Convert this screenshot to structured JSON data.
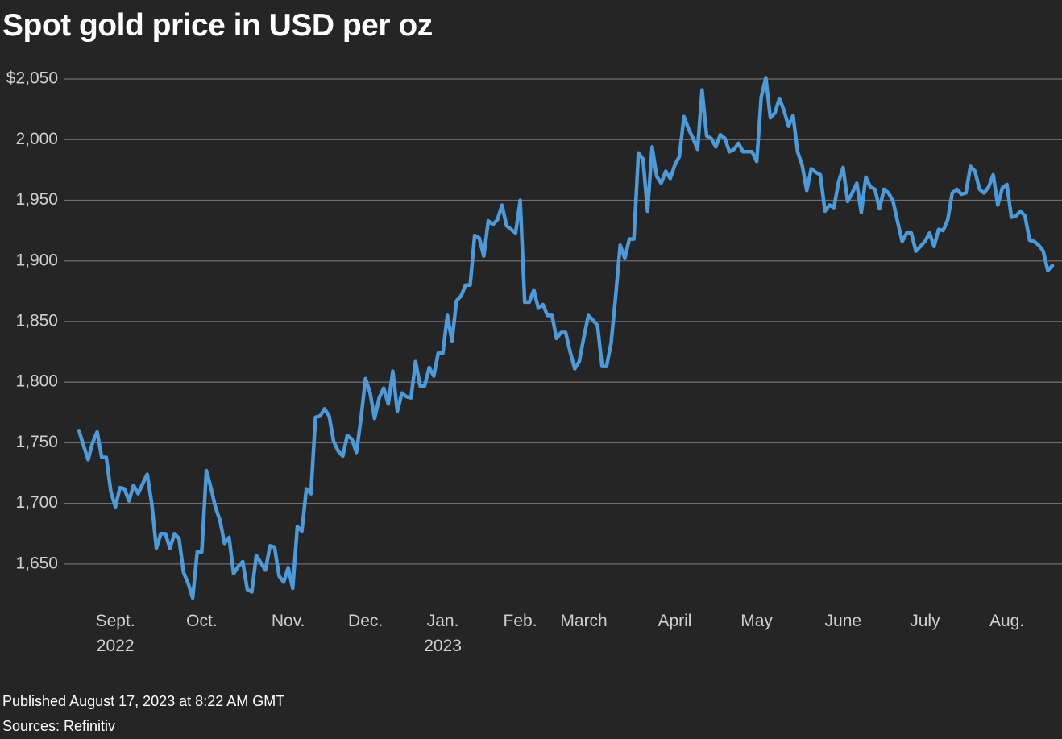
{
  "chart_data": {
    "type": "line",
    "title": "Spot gold price in USD per oz",
    "footer": [
      "Published August 17, 2023 at 8:22 AM GMT",
      "Sources: Refinitiv"
    ],
    "color": "#4c9ad9",
    "grid": true,
    "ylim": [
      1620,
      2055
    ],
    "yticks": [
      {
        "value": 2050,
        "label": "$2,050"
      },
      {
        "value": 2000,
        "label": "2,000"
      },
      {
        "value": 1950,
        "label": "1,950"
      },
      {
        "value": 1900,
        "label": "1,900"
      },
      {
        "value": 1850,
        "label": "1,850"
      },
      {
        "value": 1800,
        "label": "1,800"
      },
      {
        "value": 1750,
        "label": "1,750"
      },
      {
        "value": 1700,
        "label": "1,700"
      },
      {
        "value": 1650,
        "label": "1,650"
      }
    ],
    "categories": [
      null,
      null,
      null,
      null,
      null,
      null,
      null,
      null,
      "Sept. 2022",
      null,
      null,
      null,
      null,
      null,
      null,
      null,
      null,
      null,
      null,
      null,
      null,
      null,
      null,
      null,
      null,
      null,
      null,
      "Oct.",
      null,
      null,
      null,
      null,
      null,
      null,
      null,
      null,
      null,
      null,
      null,
      null,
      null,
      null,
      null,
      null,
      null,
      null,
      "Nov.",
      null,
      null,
      null,
      null,
      null,
      null,
      null,
      null,
      null,
      null,
      null,
      null,
      null,
      null,
      null,
      null,
      "Dec.",
      null,
      null,
      null,
      null,
      null,
      null,
      null,
      null,
      null,
      null,
      null,
      null,
      null,
      null,
      null,
      null,
      "Jan. 2023",
      null,
      null,
      null,
      null,
      null,
      null,
      null,
      null,
      null,
      null,
      null,
      null,
      null,
      null,
      null,
      null,
      "Feb.",
      null,
      null,
      null,
      null,
      null,
      null,
      null,
      null,
      null,
      null,
      null,
      null,
      null,
      "March",
      null,
      null,
      null,
      null,
      null,
      null,
      null,
      null,
      null,
      null,
      null,
      null,
      null,
      null,
      null,
      null,
      null,
      null,
      null,
      "April",
      null,
      null,
      null,
      null,
      null,
      null,
      null,
      null,
      null,
      null,
      null,
      null,
      null,
      null,
      null,
      null,
      null,
      "May",
      null,
      null,
      null,
      null,
      null,
      null,
      null,
      null,
      null,
      null,
      null,
      null,
      null,
      null,
      null,
      null,
      null,
      null,
      "June",
      null,
      null,
      null,
      null,
      null,
      null,
      null,
      null,
      null,
      null,
      null,
      null,
      null,
      null,
      null,
      null,
      null,
      "July",
      null,
      null,
      null,
      null,
      null,
      null,
      null,
      null,
      null,
      null,
      null,
      null,
      null,
      null,
      null,
      null,
      null,
      "Aug.",
      null,
      null,
      null,
      null,
      null,
      null,
      null,
      null,
      null,
      null
    ],
    "values": [
      1760,
      1748,
      1736,
      1750,
      1759,
      1738,
      1738,
      1710,
      1697,
      1713,
      1712,
      1702,
      1715,
      1708,
      1716,
      1724,
      1700,
      1663,
      1675,
      1675,
      1663,
      1675,
      1671,
      1643,
      1634,
      1622,
      1660,
      1660,
      1727,
      1713,
      1697,
      1686,
      1667,
      1672,
      1642,
      1648,
      1652,
      1629,
      1627,
      1657,
      1651,
      1645,
      1665,
      1664,
      1640,
      1635,
      1647,
      1630,
      1681,
      1677,
      1712,
      1708,
      1771,
      1772,
      1778,
      1772,
      1751,
      1743,
      1739,
      1756,
      1753,
      1742,
      1770,
      1803,
      1791,
      1770,
      1787,
      1795,
      1782,
      1809,
      1776,
      1791,
      1788,
      1787,
      1817,
      1797,
      1797,
      1812,
      1805,
      1824,
      1824,
      1855,
      1834,
      1867,
      1871,
      1880,
      1880,
      1921,
      1919,
      1904,
      1933,
      1930,
      1934,
      1946,
      1929,
      1926,
      1923,
      1950,
      1866,
      1866,
      1876,
      1861,
      1864,
      1855,
      1855,
      1836,
      1841,
      1841,
      1825,
      1811,
      1817,
      1837,
      1855,
      1851,
      1847,
      1813,
      1813,
      1832,
      1871,
      1913,
      1902,
      1918,
      1918,
      1989,
      1984,
      1941,
      1994,
      1970,
      1964,
      1974,
      1968,
      1979,
      1986,
      2019,
      2009,
      2001,
      1992,
      2041,
      2003,
      2001,
      1994,
      2004,
      2001,
      1990,
      1992,
      1997,
      1990,
      1990,
      1990,
      1982,
      2035,
      2051,
      2018,
      2022,
      2034,
      2024,
      2011,
      2020,
      1990,
      1979,
      1958,
      1976,
      1973,
      1971,
      1941,
      1946,
      1944,
      1965,
      1977,
      1949,
      1956,
      1964,
      1940,
      1969,
      1961,
      1959,
      1943,
      1959,
      1956,
      1949,
      1932,
      1916,
      1923,
      1923,
      1908,
      1912,
      1916,
      1923,
      1912,
      1926,
      1925,
      1934,
      1956,
      1959,
      1955,
      1956,
      1978,
      1974,
      1959,
      1956,
      1961,
      1971,
      1946,
      1960,
      1963,
      1936,
      1937,
      1941,
      1937,
      1917,
      1916,
      1913,
      1908,
      1892,
      1896
    ]
  }
}
